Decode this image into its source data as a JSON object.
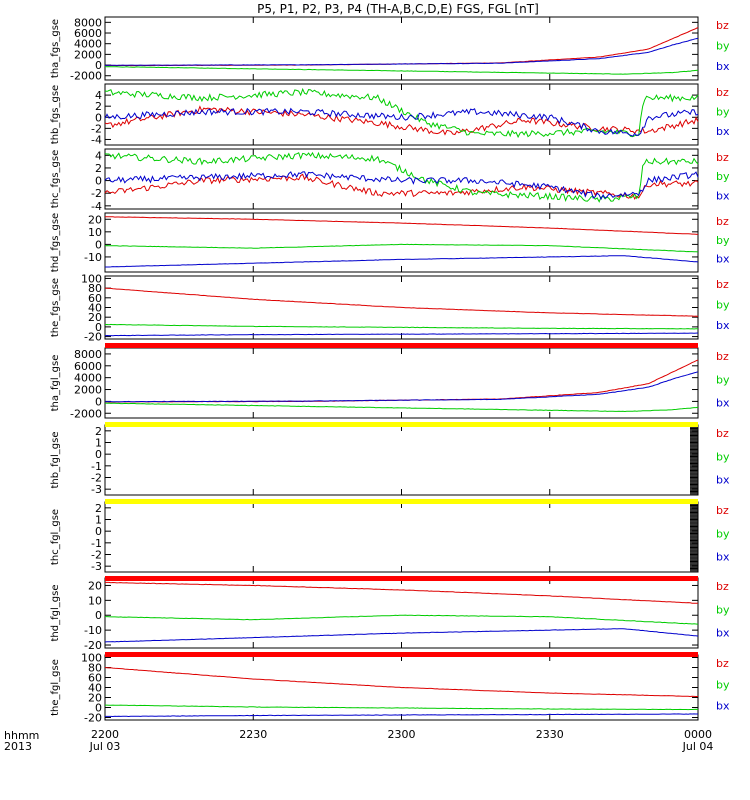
{
  "title": "P5, P1, P2, P3, P4 (TH-A,B,C,D,E) FGS, FGL [nT]",
  "time_axis": {
    "label_line1": "hhmm",
    "label_line2": "2013",
    "ticks": [
      {
        "t": 0,
        "top": "2200",
        "bottom": "Jul 03"
      },
      {
        "t": 30,
        "top": "2230",
        "bottom": ""
      },
      {
        "t": 60,
        "top": "2300",
        "bottom": ""
      },
      {
        "t": 90,
        "top": "2330",
        "bottom": ""
      },
      {
        "t": 120,
        "top": "0000",
        "bottom": "Jul 04"
      }
    ]
  },
  "colors": {
    "bx": "#0000cc",
    "by": "#00cc00",
    "bz": "#dd0000",
    "bar_red": "#ff0000",
    "bar_yellow": "#ffff00"
  },
  "chart_data": [
    {
      "type": "line",
      "ylabel": "tha_fgs_gse",
      "ylim": [
        -2800,
        9000
      ],
      "yticks": [
        -2000,
        0,
        2000,
        4000,
        6000,
        8000
      ],
      "series": [
        {
          "name": "bz",
          "color": "red",
          "shape": "rise",
          "points": [
            [
              0,
              -100
            ],
            [
              40,
              0
            ],
            [
              80,
              400
            ],
            [
              100,
              1500
            ],
            [
              110,
              3000
            ],
            [
              115,
              5000
            ],
            [
              120,
              7000
            ]
          ]
        },
        {
          "name": "by",
          "color": "green",
          "shape": "smooth",
          "points": [
            [
              0,
              -300
            ],
            [
              30,
              -700
            ],
            [
              60,
              -1100
            ],
            [
              90,
              -1500
            ],
            [
              105,
              -1700
            ],
            [
              115,
              -1400
            ],
            [
              120,
              -1000
            ]
          ]
        },
        {
          "name": "bx",
          "color": "blue",
          "shape": "rise",
          "points": [
            [
              0,
              -50
            ],
            [
              40,
              50
            ],
            [
              80,
              350
            ],
            [
              100,
              1200
            ],
            [
              110,
              2400
            ],
            [
              115,
              3800
            ],
            [
              120,
              5000
            ]
          ]
        }
      ]
    },
    {
      "type": "line",
      "ylabel": "thb_fgs_gse",
      "ylim": [
        -5,
        6
      ],
      "yticks": [
        -4,
        -2,
        0,
        2,
        4
      ],
      "series": [
        {
          "name": "bz",
          "color": "red",
          "shape": "noisy",
          "points": [
            [
              0,
              -1.5
            ],
            [
              20,
              1.5
            ],
            [
              40,
              0.5
            ],
            [
              55,
              -1
            ],
            [
              70,
              -3
            ],
            [
              85,
              -0.5
            ],
            [
              100,
              -2
            ],
            [
              110,
              -2.5
            ],
            [
              120,
              -0.5
            ]
          ]
        },
        {
          "name": "by",
          "color": "green",
          "shape": "noisy",
          "points": [
            [
              0,
              4.5
            ],
            [
              20,
              3.5
            ],
            [
              40,
              4.5
            ],
            [
              55,
              3.5
            ],
            [
              65,
              -1
            ],
            [
              75,
              -3
            ],
            [
              85,
              -3
            ],
            [
              100,
              -2.5
            ],
            [
              108,
              -3
            ],
            [
              109,
              3.5
            ],
            [
              120,
              3.5
            ]
          ]
        },
        {
          "name": "bx",
          "color": "blue",
          "shape": "noisy",
          "points": [
            [
              0,
              0
            ],
            [
              20,
              1
            ],
            [
              40,
              1
            ],
            [
              60,
              0
            ],
            [
              75,
              1
            ],
            [
              90,
              0
            ],
            [
              100,
              -2.5
            ],
            [
              108,
              -3
            ],
            [
              110,
              0
            ],
            [
              120,
              1
            ]
          ]
        }
      ]
    },
    {
      "type": "line",
      "ylabel": "thc_fgs_gse",
      "ylim": [
        -4.5,
        5
      ],
      "yticks": [
        -4,
        -2,
        0,
        2,
        4
      ],
      "series": [
        {
          "name": "bz",
          "color": "red",
          "shape": "noisy",
          "points": [
            [
              0,
              -2
            ],
            [
              20,
              0
            ],
            [
              40,
              0.5
            ],
            [
              55,
              -2
            ],
            [
              70,
              -2
            ],
            [
              85,
              -1
            ],
            [
              100,
              -2
            ],
            [
              108,
              -2.5
            ],
            [
              110,
              -0.5
            ],
            [
              120,
              -0.5
            ]
          ]
        },
        {
          "name": "by",
          "color": "green",
          "shape": "noisy",
          "points": [
            [
              0,
              4
            ],
            [
              20,
              3
            ],
            [
              40,
              4
            ],
            [
              55,
              3.5
            ],
            [
              65,
              0
            ],
            [
              75,
              -2
            ],
            [
              90,
              -2.5
            ],
            [
              100,
              -3
            ],
            [
              108,
              -2.5
            ],
            [
              109,
              3
            ],
            [
              120,
              3
            ]
          ]
        },
        {
          "name": "bx",
          "color": "blue",
          "shape": "noisy",
          "points": [
            [
              0,
              0
            ],
            [
              20,
              0.5
            ],
            [
              40,
              1
            ],
            [
              60,
              0
            ],
            [
              75,
              0
            ],
            [
              90,
              -1
            ],
            [
              100,
              -2.5
            ],
            [
              108,
              -2
            ],
            [
              110,
              0
            ],
            [
              120,
              1
            ]
          ]
        }
      ]
    },
    {
      "type": "line",
      "ylabel": "thd_fgs_gse",
      "ylim": [
        -22,
        25
      ],
      "yticks": [
        -10,
        0,
        10,
        20
      ],
      "series": [
        {
          "name": "bz",
          "color": "red",
          "shape": "smooth",
          "points": [
            [
              0,
              22
            ],
            [
              30,
              20
            ],
            [
              60,
              17
            ],
            [
              90,
              13
            ],
            [
              120,
              8
            ]
          ]
        },
        {
          "name": "by",
          "color": "green",
          "shape": "smooth",
          "points": [
            [
              0,
              -1
            ],
            [
              30,
              -3
            ],
            [
              60,
              0
            ],
            [
              90,
              -1
            ],
            [
              120,
              -6
            ]
          ]
        },
        {
          "name": "bx",
          "color": "blue",
          "shape": "smooth",
          "points": [
            [
              0,
              -18
            ],
            [
              30,
              -15
            ],
            [
              60,
              -12
            ],
            [
              90,
              -10
            ],
            [
              105,
              -9
            ],
            [
              120,
              -14
            ]
          ]
        }
      ]
    },
    {
      "type": "line",
      "ylabel": "the_fgs_gse",
      "ylim": [
        -25,
        105
      ],
      "yticks": [
        -20,
        0,
        20,
        40,
        60,
        80,
        100
      ],
      "series": [
        {
          "name": "bz",
          "color": "red",
          "shape": "smooth",
          "points": [
            [
              0,
              80
            ],
            [
              30,
              57
            ],
            [
              60,
              40
            ],
            [
              90,
              29
            ],
            [
              120,
              22
            ]
          ]
        },
        {
          "name": "by",
          "color": "green",
          "shape": "smooth",
          "points": [
            [
              0,
              5
            ],
            [
              30,
              1
            ],
            [
              60,
              -1
            ],
            [
              90,
              -3
            ],
            [
              120,
              -4
            ]
          ]
        },
        {
          "name": "bx",
          "color": "blue",
          "shape": "smooth",
          "points": [
            [
              0,
              -18
            ],
            [
              30,
              -16
            ],
            [
              60,
              -15
            ],
            [
              90,
              -14
            ],
            [
              120,
              -13
            ]
          ]
        }
      ]
    },
    {
      "type": "line",
      "ylabel": "tha_fgl_gse",
      "ylim": [
        -2800,
        9000
      ],
      "yticks": [
        -2000,
        0,
        2000,
        4000,
        6000,
        8000
      ],
      "series": [
        {
          "name": "bz",
          "color": "red",
          "shape": "rise",
          "points": [
            [
              0,
              -100
            ],
            [
              40,
              0
            ],
            [
              80,
              400
            ],
            [
              100,
              1500
            ],
            [
              110,
              3000
            ],
            [
              115,
              5000
            ],
            [
              120,
              7000
            ]
          ]
        },
        {
          "name": "by",
          "color": "green",
          "shape": "smooth",
          "points": [
            [
              0,
              -300
            ],
            [
              30,
              -700
            ],
            [
              60,
              -1100
            ],
            [
              90,
              -1500
            ],
            [
              105,
              -1700
            ],
            [
              115,
              -1400
            ],
            [
              120,
              -1000
            ]
          ]
        },
        {
          "name": "bx",
          "color": "blue",
          "shape": "rise",
          "points": [
            [
              0,
              -50
            ],
            [
              40,
              50
            ],
            [
              80,
              350
            ],
            [
              100,
              1200
            ],
            [
              110,
              2400
            ],
            [
              115,
              3800
            ],
            [
              120,
              5000
            ]
          ]
        }
      ]
    },
    {
      "type": "line",
      "ylabel": "thb_fgl_gse",
      "ylim": [
        -3.5,
        2.5
      ],
      "yticks": [
        -3,
        -2,
        -1,
        0,
        1,
        2
      ],
      "series": []
    },
    {
      "type": "line",
      "ylabel": "thc_fgl_gse",
      "ylim": [
        -3.5,
        2.5
      ],
      "yticks": [
        -3,
        -2,
        -1,
        0,
        1,
        2
      ],
      "series": []
    },
    {
      "type": "line",
      "ylabel": "thd_fgl_gse",
      "ylim": [
        -22,
        25
      ],
      "yticks": [
        -20,
        -10,
        0,
        10,
        20
      ],
      "series": [
        {
          "name": "bz",
          "color": "red",
          "shape": "smooth",
          "points": [
            [
              0,
              22
            ],
            [
              30,
              20
            ],
            [
              60,
              17
            ],
            [
              90,
              13
            ],
            [
              120,
              8
            ]
          ]
        },
        {
          "name": "by",
          "color": "green",
          "shape": "smooth",
          "points": [
            [
              0,
              -1
            ],
            [
              30,
              -3
            ],
            [
              60,
              0
            ],
            [
              90,
              -1
            ],
            [
              120,
              -6
            ]
          ]
        },
        {
          "name": "bx",
          "color": "blue",
          "shape": "smooth",
          "points": [
            [
              0,
              -18
            ],
            [
              30,
              -15
            ],
            [
              60,
              -12
            ],
            [
              90,
              -10
            ],
            [
              105,
              -9
            ],
            [
              120,
              -14
            ]
          ]
        }
      ]
    },
    {
      "type": "line",
      "ylabel": "the_fgl_gse",
      "ylim": [
        -25,
        105
      ],
      "yticks": [
        -20,
        0,
        20,
        40,
        60,
        80,
        100
      ],
      "series": [
        {
          "name": "bz",
          "color": "red",
          "shape": "smooth",
          "points": [
            [
              0,
              80
            ],
            [
              30,
              57
            ],
            [
              60,
              40
            ],
            [
              90,
              29
            ],
            [
              120,
              22
            ]
          ]
        },
        {
          "name": "by",
          "color": "green",
          "shape": "smooth",
          "points": [
            [
              0,
              5
            ],
            [
              30,
              1
            ],
            [
              60,
              -1
            ],
            [
              90,
              -3
            ],
            [
              120,
              -4
            ]
          ]
        },
        {
          "name": "bx",
          "color": "blue",
          "shape": "smooth",
          "points": [
            [
              0,
              -18
            ],
            [
              30,
              -16
            ],
            [
              60,
              -15
            ],
            [
              90,
              -14
            ],
            [
              120,
              -13
            ]
          ]
        }
      ]
    }
  ],
  "status_bars": [
    {
      "below_panel": 4,
      "color": "red"
    },
    {
      "below_panel": 5,
      "color": "yellow"
    },
    {
      "below_panel": 6,
      "color": "yellow"
    },
    {
      "below_panel": 7,
      "color": "red"
    },
    {
      "below_panel": 8,
      "color": "red"
    }
  ]
}
